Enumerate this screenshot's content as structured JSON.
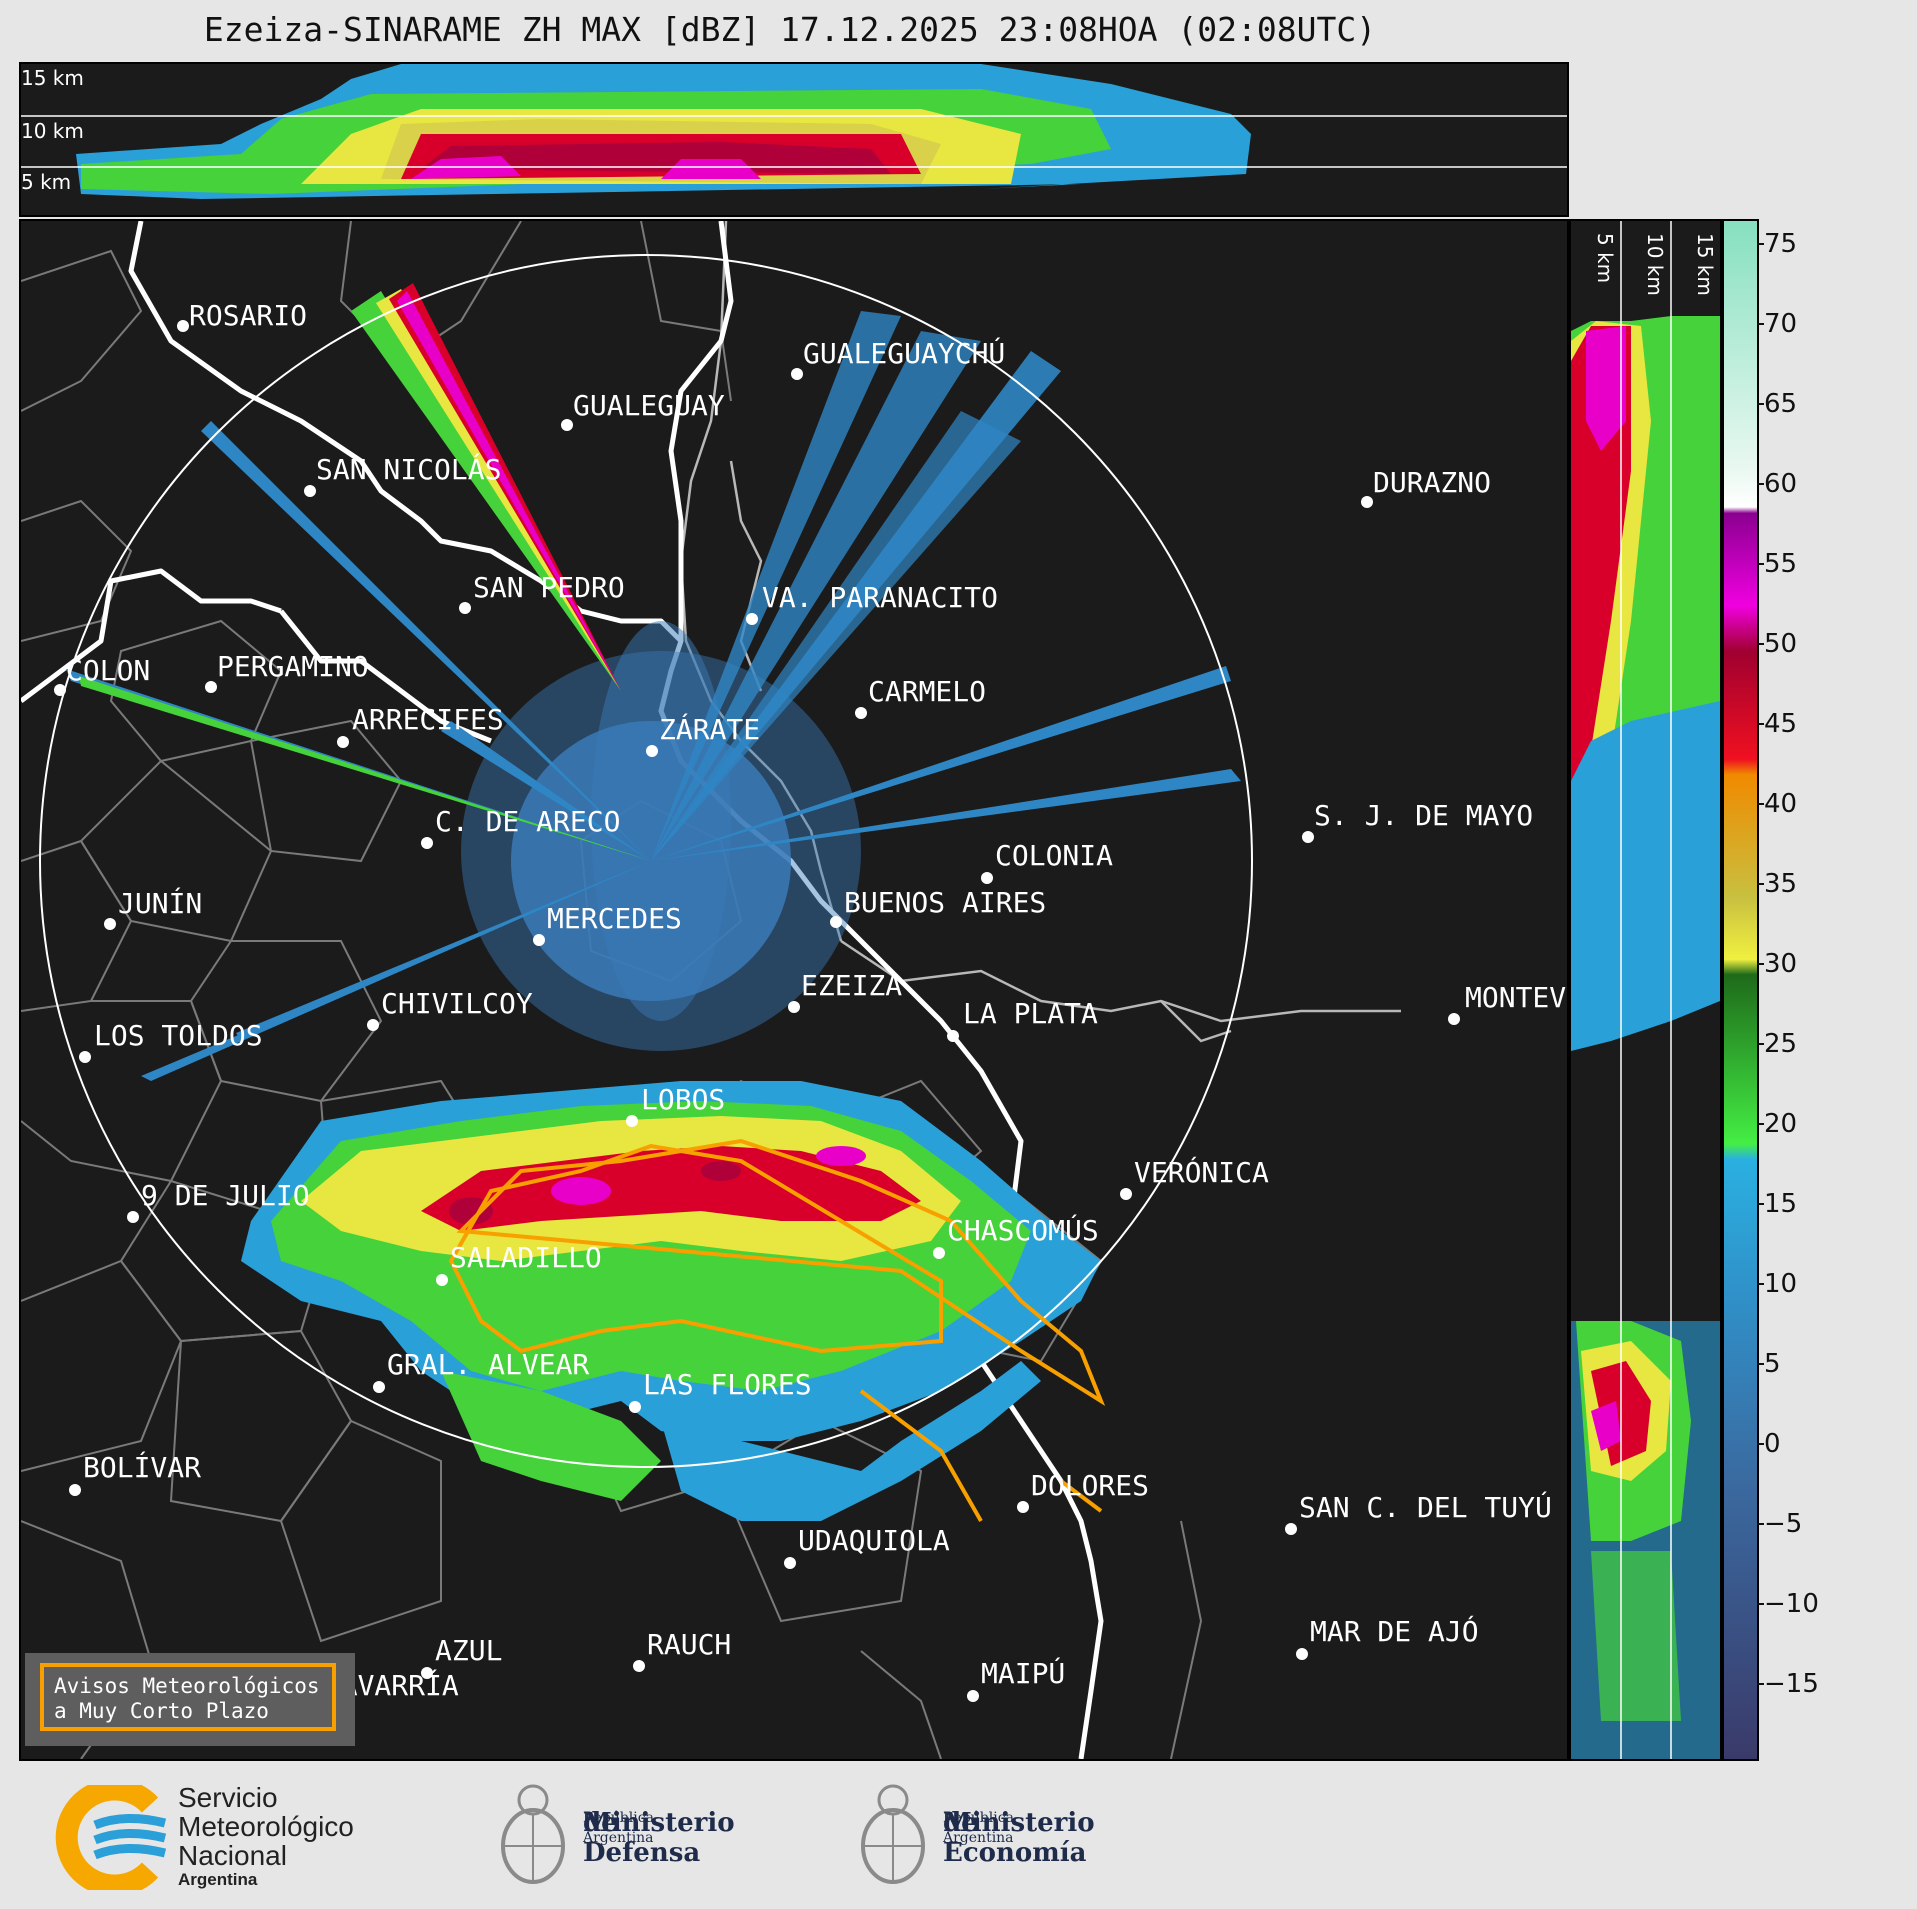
{
  "title": "Ezeiza-SINARAME ZH MAX [dBZ] 17.12.2025 23:08HOA (02:08UTC)",
  "top_panel": {
    "altitude_labels": [
      "15 km",
      "10 km",
      "5 km"
    ]
  },
  "side_panel": {
    "altitude_labels": [
      "5 km",
      "10 km",
      "15 km"
    ]
  },
  "colorbar": {
    "unit": "dBZ",
    "ticks": [
      "75",
      "70",
      "65",
      "60",
      "55",
      "50",
      "45",
      "40",
      "35",
      "30",
      "25",
      "20",
      "15",
      "10",
      "5",
      "0",
      "−5",
      "−10",
      "−15"
    ],
    "range": [
      -20,
      77
    ]
  },
  "cities": {
    "rosario": "ROSARIO",
    "gualeguaychu": "GUALEGUAYCHÚ",
    "gualeguay": "GUALEGUAY",
    "san_nicolas": "SAN NICOLÁS",
    "durazno": "DURAZNO",
    "san_pedro": "SAN PEDRO",
    "va_paranacito": "VA. PARANACITO",
    "colon": "COLON",
    "pergamino": "PERGAMINO",
    "carmelo": "CARMELO",
    "arrecifes": "ARRECIFES",
    "zarate": "ZÁRATE",
    "sj_de_mayo": "S. J. DE MAYO",
    "c_de_areco": "C. DE ARECO",
    "colonia": "COLONIA",
    "junin": "JUNÍN",
    "buenos_aires": "BUENOS AIRES",
    "mercedes": "MERCEDES",
    "ezeiza": "EZEIZA",
    "montevideo": "MONTEV",
    "chivilcoy": "CHIVILCOY",
    "la_plata": "LA PLATA",
    "los_toldos": "LOS TOLDOS",
    "lobos": "LOBOS",
    "veronica": "VERÓNICA",
    "nueve_de_julio": "9 DE JULIO",
    "chascomus": "CHASCOMÚS",
    "saladillo": "SALADILLO",
    "gral_alvear": "GRAL. ALVEAR",
    "las_flores": "LAS FLORES",
    "bolivar": "BOLÍVAR",
    "dolores": "DOLORES",
    "san_c_del_tuyu": "SAN C. DEL TUYÚ",
    "udaquiola": "UDAQUIOLA",
    "mar_de_ajo": "MAR DE AJÓ",
    "rauch": "RAUCH",
    "azul": "AZUL",
    "olavarria": "OLAVARRÍA",
    "maipu": "MAIPÚ"
  },
  "avisos": {
    "line1": "Avisos Meteorológicos",
    "line2": "a Muy Corto Plazo"
  },
  "footer": {
    "smn_line1": "Servicio",
    "smn_line2": "Meteorológico",
    "smn_line3": "Nacional",
    "smn_line4": "Argentina",
    "defensa_line1": "Ministerio",
    "defensa_line2": "de Defensa",
    "defensa_line3": "República Argentina",
    "economia_line1": "Ministerio",
    "economia_line2": "de Economía",
    "economia_line3": "República Argentina"
  },
  "colors": {
    "background": "#e6e6e6",
    "map_bg": "#1b1b1b",
    "warning_outline": "#f7a000",
    "smn_blue": "#2a9fd8",
    "smn_yellow": "#f7a800",
    "ministry_navy": "#1e2b4a"
  }
}
